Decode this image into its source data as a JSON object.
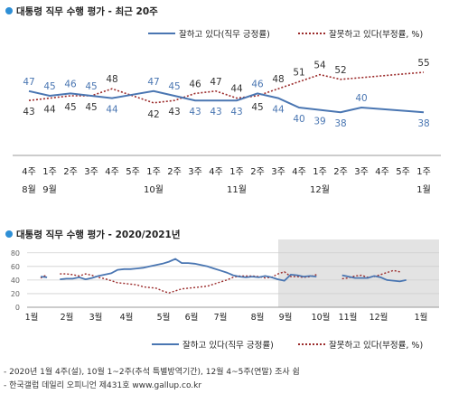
{
  "chart1": {
    "title": "대통령 직무 수행 평가 - 최근 20주",
    "legend": {
      "approve": "잘하고 있다(직무 긍정률)",
      "disapprove": "잘못하고 있다(부정률, %)"
    },
    "colors": {
      "approve": "#4a76b2",
      "disapprove": "#9b2b2b",
      "accent": "#2e8fd6"
    }
  },
  "chart2": {
    "title": "대통령 직무 수행 평가 - 2020/2021년",
    "legend": {
      "approve": "잘하고 있다(직무 긍정률)",
      "disapprove": "잘못하고 있다(부정률, %)"
    }
  },
  "footnotes": {
    "line1": "- 2020년 1월 4주(설), 10월 1~2주(추석 특별방역기간), 12월 4~5주(연말) 조사 쉼",
    "line2": "- 한국갤럽 데일리 오피니언 제431호 www.gallup.co.kr"
  },
  "chart_data": [
    {
      "type": "line",
      "title": "대통령 직무 수행 평가 - 최근 20주",
      "categories": [
        "8월 4주",
        "9월 1주",
        "2주",
        "3주",
        "4주",
        "5주",
        "10월 1주",
        "2주",
        "3주",
        "4주",
        "11월 1주",
        "2주",
        "3주",
        "4주",
        "12월 1주",
        "2주",
        "3주",
        "4주",
        "5주",
        "1월 1주"
      ],
      "x_tick_labels": [
        [
          "4주",
          "8월"
        ],
        [
          "1주",
          "9월"
        ],
        [
          "2주",
          ""
        ],
        [
          "3주",
          ""
        ],
        [
          "4주",
          ""
        ],
        [
          "5주",
          ""
        ],
        [
          "1주",
          "10월"
        ],
        [
          "2주",
          ""
        ],
        [
          "3주",
          ""
        ],
        [
          "4주",
          ""
        ],
        [
          "1주",
          "11월"
        ],
        [
          "2주",
          ""
        ],
        [
          "3주",
          ""
        ],
        [
          "4주",
          ""
        ],
        [
          "1주",
          "12월"
        ],
        [
          "2주",
          ""
        ],
        [
          "3주",
          ""
        ],
        [
          "4주",
          ""
        ],
        [
          "5주",
          ""
        ],
        [
          "1주",
          "1월"
        ]
      ],
      "series": [
        {
          "name": "잘하고 있다(직무 긍정률)",
          "values": [
            47,
            45,
            46,
            45,
            44,
            null,
            47,
            45,
            43,
            43,
            43,
            46,
            44,
            40,
            39,
            38,
            40,
            null,
            null,
            38
          ]
        },
        {
          "name": "잘못하고 있다(부정률, %)",
          "values": [
            43,
            44,
            45,
            45,
            48,
            null,
            42,
            43,
            46,
            47,
            44,
            45,
            48,
            51,
            54,
            52,
            null,
            null,
            null,
            55
          ]
        }
      ],
      "ylim": [
        30,
        60
      ],
      "grid": false,
      "legend_position": "top-right"
    },
    {
      "type": "line",
      "title": "대통령 직무 수행 평가 - 2020/2021년",
      "x_tick_labels": [
        "1월",
        "2월",
        "3월",
        "4월",
        "5월",
        "6월",
        "7월",
        "8월",
        "9월",
        "10월",
        "11월",
        "12월",
        "1월"
      ],
      "y_ticks": [
        0,
        20,
        40,
        60,
        80
      ],
      "ylim": [
        0,
        85
      ],
      "series": [
        {
          "name": "잘하고 있다(직무 긍정률)",
          "values": [
            45,
            44,
            null,
            41,
            42,
            42,
            44,
            41,
            43,
            46,
            48,
            50,
            55,
            56,
            56,
            57,
            58,
            60,
            62,
            64,
            67,
            71,
            65,
            65,
            64,
            62,
            60,
            57,
            54,
            51,
            47,
            45,
            44,
            45,
            44,
            46,
            44,
            41,
            39,
            48,
            47,
            45,
            46,
            45,
            null,
            null,
            null,
            47,
            45,
            43,
            43,
            43,
            46,
            44,
            40,
            39,
            38,
            40,
            null,
            null,
            38
          ]
        },
        {
          "name": "잘못하고 있다(부정률, %)",
          "values": [
            43,
            48,
            null,
            49,
            49,
            48,
            46,
            49,
            47,
            44,
            42,
            39,
            36,
            35,
            34,
            33,
            30,
            29,
            28,
            24,
            21,
            24,
            27,
            28,
            29,
            30,
            31,
            34,
            37,
            40,
            44,
            46,
            46,
            46,
            45,
            43,
            44,
            49,
            52,
            45,
            45,
            44,
            45,
            48,
            null,
            null,
            null,
            42,
            43,
            46,
            47,
            44,
            45,
            48,
            51,
            54,
            52,
            null,
            null,
            null,
            55
          ]
        }
      ],
      "shaded_region": [
        "9월",
        "1월"
      ],
      "grid": true,
      "legend_position": "bottom"
    }
  ]
}
